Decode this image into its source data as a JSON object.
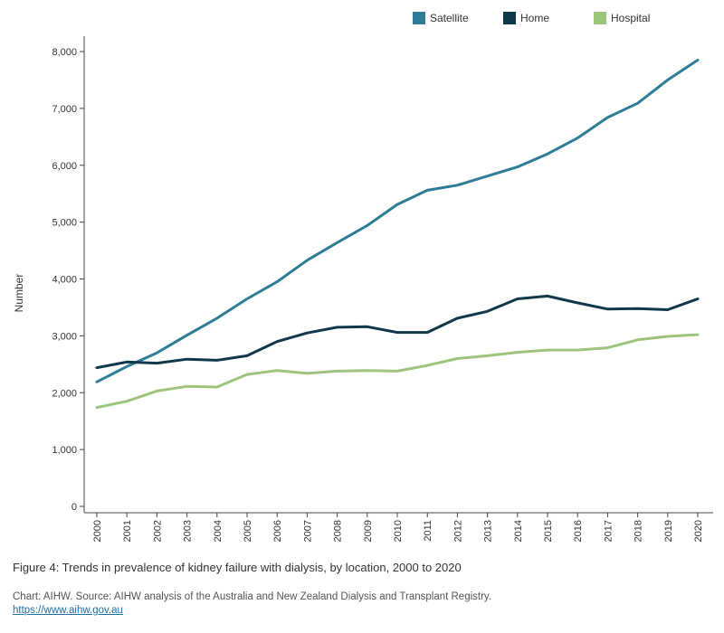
{
  "chart_data": {
    "type": "line",
    "title": "",
    "xlabel": "",
    "ylabel": "Number",
    "ylim": [
      0,
      8000
    ],
    "yticks": [
      0,
      1000,
      2000,
      3000,
      4000,
      5000,
      6000,
      7000,
      8000
    ],
    "ytick_labels": [
      "0",
      "1,000",
      "2,000",
      "3,000",
      "4,000",
      "5,000",
      "6,000",
      "7,000",
      "8,000"
    ],
    "categories": [
      "2000",
      "2001",
      "2002",
      "2003",
      "2004",
      "2005",
      "2006",
      "2007",
      "2008",
      "2009",
      "2010",
      "2011",
      "2012",
      "2013",
      "2014",
      "2015",
      "2016",
      "2017",
      "2018",
      "2019",
      "2020"
    ],
    "legend_position": "top-right",
    "series": [
      {
        "name": "Satellite",
        "color": "#2e7c96",
        "values": [
          2190,
          2460,
          2700,
          3010,
          3310,
          3650,
          3950,
          4330,
          4640,
          4940,
          5310,
          5560,
          5650,
          5810,
          5970,
          6200,
          6480,
          6840,
          7090,
          7500,
          7850
        ]
      },
      {
        "name": "Home",
        "color": "#10384a",
        "values": [
          2440,
          2540,
          2520,
          2590,
          2570,
          2650,
          2900,
          3050,
          3150,
          3160,
          3060,
          3060,
          3310,
          3430,
          3650,
          3700,
          3580,
          3470,
          3480,
          3460,
          3650
        ]
      },
      {
        "name": "Hospital",
        "color": "#9dc47b",
        "values": [
          1740,
          1850,
          2030,
          2110,
          2100,
          2320,
          2390,
          2340,
          2380,
          2390,
          2380,
          2480,
          2600,
          2650,
          2710,
          2750,
          2750,
          2790,
          2930,
          2990,
          3020
        ]
      }
    ]
  },
  "caption": "Figure 4: Trends in prevalence of kidney failure with dialysis, by location, 2000 to 2020",
  "source": "Chart: AIHW. Source: AIHW analysis of the Australia and New Zealand Dialysis and Transplant Registry.",
  "link": "https://www.aihw.gov.au"
}
